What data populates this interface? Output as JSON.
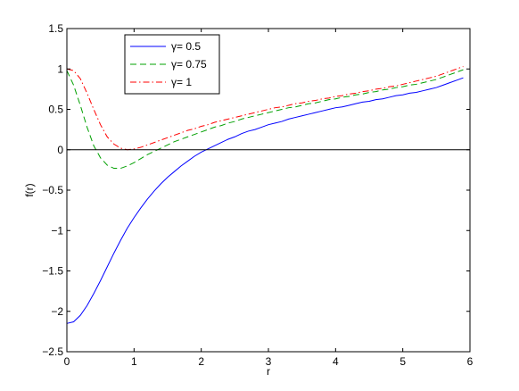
{
  "chart_data": {
    "type": "line",
    "title": "",
    "xlabel": "r",
    "ylabel": "f(r)",
    "xlim": [
      0,
      6
    ],
    "ylim": [
      -2.5,
      1.5
    ],
    "xticks": [
      "0",
      "1",
      "2",
      "3",
      "4",
      "5",
      "6"
    ],
    "yticks": [
      "−2.5",
      "−2",
      "−1.5",
      "−1",
      "−0.5",
      "0",
      "0.5",
      "1",
      "1.5"
    ],
    "grid": false,
    "legend_position": "top-left",
    "reference_line_y": 0,
    "x": [
      0,
      0.1,
      0.2,
      0.3,
      0.4,
      0.5,
      0.6,
      0.7,
      0.8,
      0.9,
      1.0,
      1.1,
      1.2,
      1.3,
      1.4,
      1.5,
      1.6,
      1.7,
      1.8,
      1.9,
      2.0,
      2.1,
      2.2,
      2.3,
      2.4,
      2.5,
      2.6,
      2.7,
      2.8,
      2.9,
      3.0,
      3.1,
      3.2,
      3.3,
      3.4,
      3.5,
      3.6,
      3.7,
      3.8,
      3.9,
      4.0,
      4.1,
      4.2,
      4.3,
      4.4,
      4.5,
      4.6,
      4.7,
      4.8,
      4.9,
      5.0,
      5.1,
      5.2,
      5.3,
      5.4,
      5.5,
      5.6,
      5.7,
      5.8,
      5.9
    ],
    "series": [
      {
        "name": "γ= 0.5",
        "color": "#0000ff",
        "dash": "solid",
        "values": [
          -2.15,
          -2.13,
          -2.05,
          -1.93,
          -1.78,
          -1.62,
          -1.45,
          -1.28,
          -1.12,
          -0.97,
          -0.84,
          -0.72,
          -0.61,
          -0.51,
          -0.42,
          -0.34,
          -0.27,
          -0.2,
          -0.14,
          -0.08,
          -0.03,
          0.01,
          0.05,
          0.09,
          0.13,
          0.16,
          0.2,
          0.23,
          0.25,
          0.28,
          0.31,
          0.33,
          0.35,
          0.38,
          0.4,
          0.42,
          0.44,
          0.46,
          0.48,
          0.5,
          0.52,
          0.53,
          0.55,
          0.57,
          0.59,
          0.6,
          0.62,
          0.63,
          0.65,
          0.67,
          0.68,
          0.7,
          0.71,
          0.73,
          0.75,
          0.77,
          0.8,
          0.83,
          0.86,
          0.89
        ]
      },
      {
        "name": "γ= 0.75",
        "color": "#00a000",
        "dash": "dashed",
        "values": [
          0.98,
          0.8,
          0.55,
          0.28,
          0.05,
          -0.1,
          -0.19,
          -0.23,
          -0.23,
          -0.2,
          -0.16,
          -0.11,
          -0.06,
          -0.02,
          0.02,
          0.06,
          0.1,
          0.13,
          0.16,
          0.19,
          0.22,
          0.25,
          0.28,
          0.3,
          0.33,
          0.35,
          0.38,
          0.4,
          0.42,
          0.44,
          0.46,
          0.48,
          0.5,
          0.52,
          0.53,
          0.55,
          0.57,
          0.58,
          0.6,
          0.62,
          0.63,
          0.65,
          0.66,
          0.68,
          0.69,
          0.71,
          0.72,
          0.74,
          0.75,
          0.77,
          0.78,
          0.8,
          0.81,
          0.83,
          0.85,
          0.87,
          0.9,
          0.93,
          0.96,
          0.99
        ]
      },
      {
        "name": "γ= 1",
        "color": "#ff0000",
        "dash": "dashdot",
        "values": [
          1.0,
          0.98,
          0.88,
          0.7,
          0.5,
          0.31,
          0.16,
          0.07,
          0.02,
          0.0,
          0.01,
          0.03,
          0.06,
          0.09,
          0.12,
          0.15,
          0.18,
          0.21,
          0.24,
          0.26,
          0.29,
          0.31,
          0.34,
          0.36,
          0.38,
          0.4,
          0.42,
          0.44,
          0.46,
          0.48,
          0.5,
          0.52,
          0.53,
          0.55,
          0.57,
          0.58,
          0.6,
          0.61,
          0.63,
          0.64,
          0.66,
          0.67,
          0.69,
          0.7,
          0.72,
          0.73,
          0.75,
          0.76,
          0.78,
          0.79,
          0.81,
          0.83,
          0.85,
          0.87,
          0.89,
          0.91,
          0.94,
          0.97,
          1.0,
          1.03
        ]
      }
    ]
  }
}
